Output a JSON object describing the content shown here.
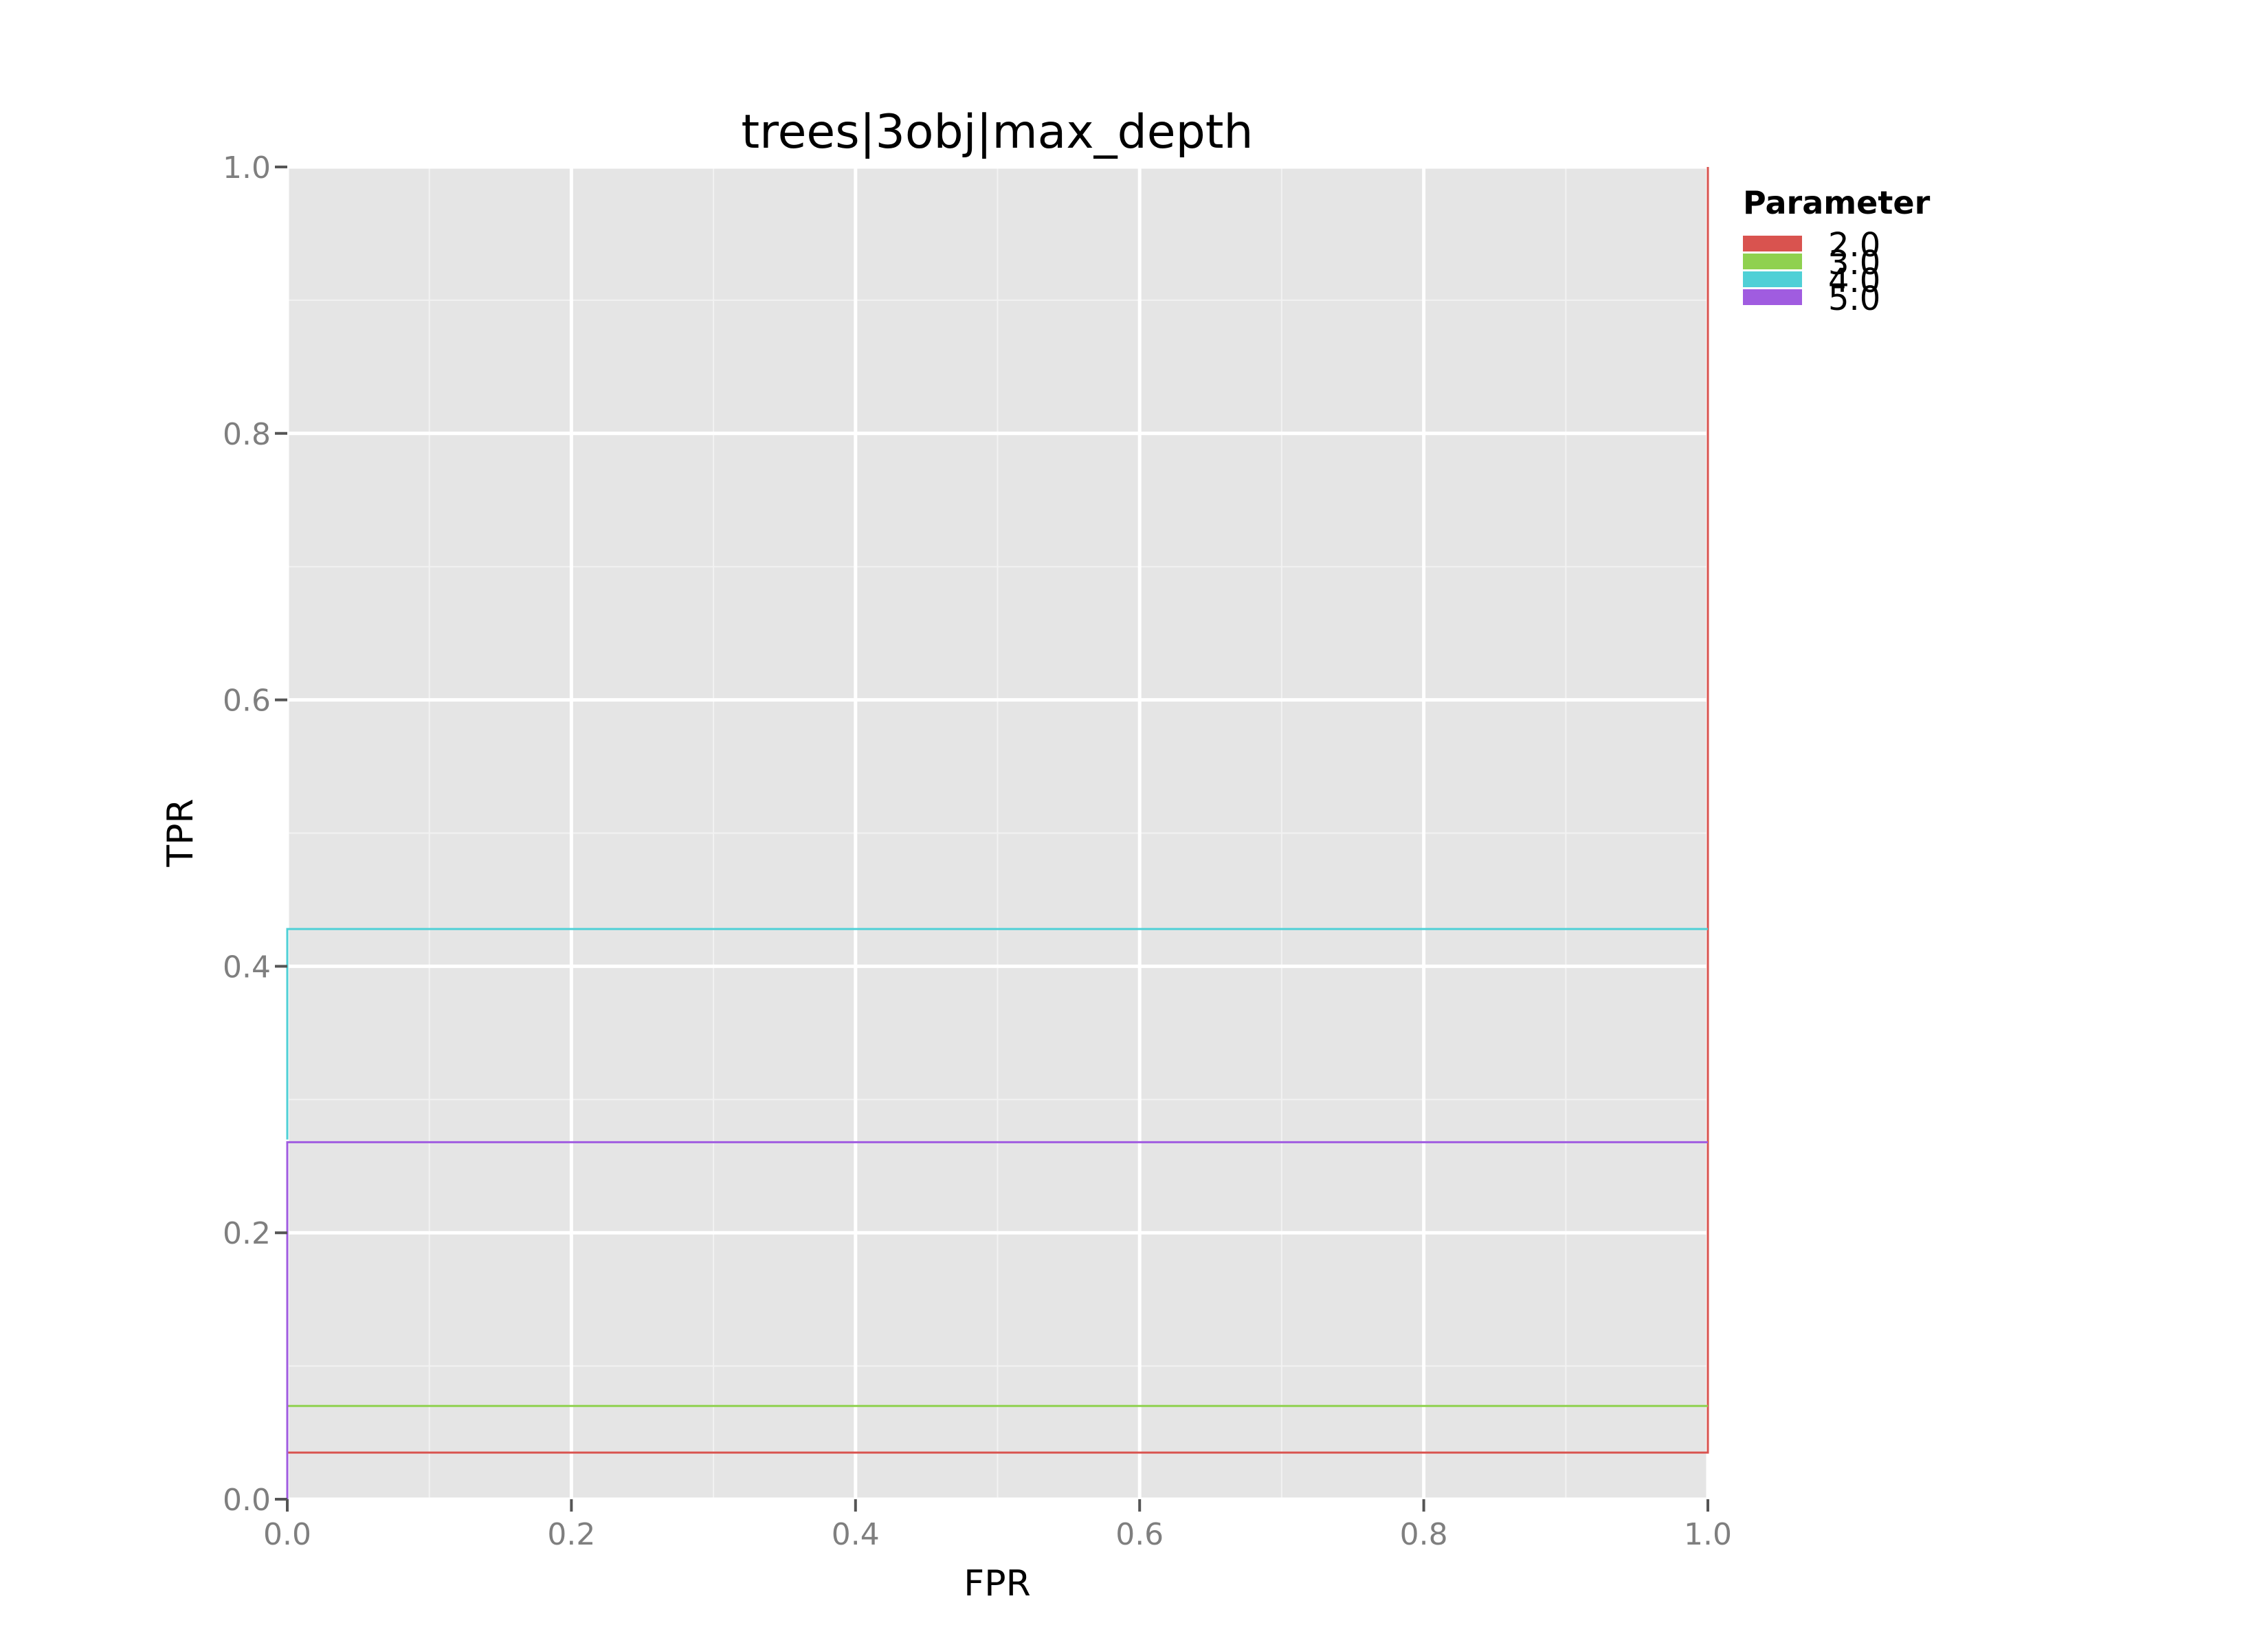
{
  "chart_data": {
    "type": "line",
    "title": "trees|3obj|max_depth",
    "xlabel": "FPR",
    "ylabel": "TPR",
    "xlim": [
      0.0,
      1.0
    ],
    "ylim": [
      0.0,
      1.0
    ],
    "x_ticks": [
      "0.0",
      "0.2",
      "0.4",
      "0.6",
      "0.8",
      "1.0"
    ],
    "y_ticks": [
      "0.0",
      "0.2",
      "0.4",
      "0.6",
      "0.8",
      "1.0"
    ],
    "grid": true,
    "legend": {
      "title": "Parameter",
      "placement": "right"
    },
    "series": [
      {
        "name": "2.0",
        "color": "#d9534f",
        "points": [
          [
            0.0,
            0.015
          ],
          [
            0.0,
            0.035
          ],
          [
            1.0,
            0.035
          ],
          [
            1.0,
            1.0
          ]
        ]
      },
      {
        "name": "3.0",
        "color": "#8fd14f",
        "points": [
          [
            0.0,
            0.07
          ],
          [
            1.0,
            0.07
          ]
        ]
      },
      {
        "name": "4.0",
        "color": "#4fd0d6",
        "points": [
          [
            0.0,
            0.27
          ],
          [
            0.0,
            0.428
          ],
          [
            1.0,
            0.428
          ]
        ]
      },
      {
        "name": "5.0",
        "color": "#a05ce0",
        "points": [
          [
            0.0,
            0.0
          ],
          [
            0.0,
            0.268
          ],
          [
            1.0,
            0.268
          ]
        ]
      }
    ]
  }
}
